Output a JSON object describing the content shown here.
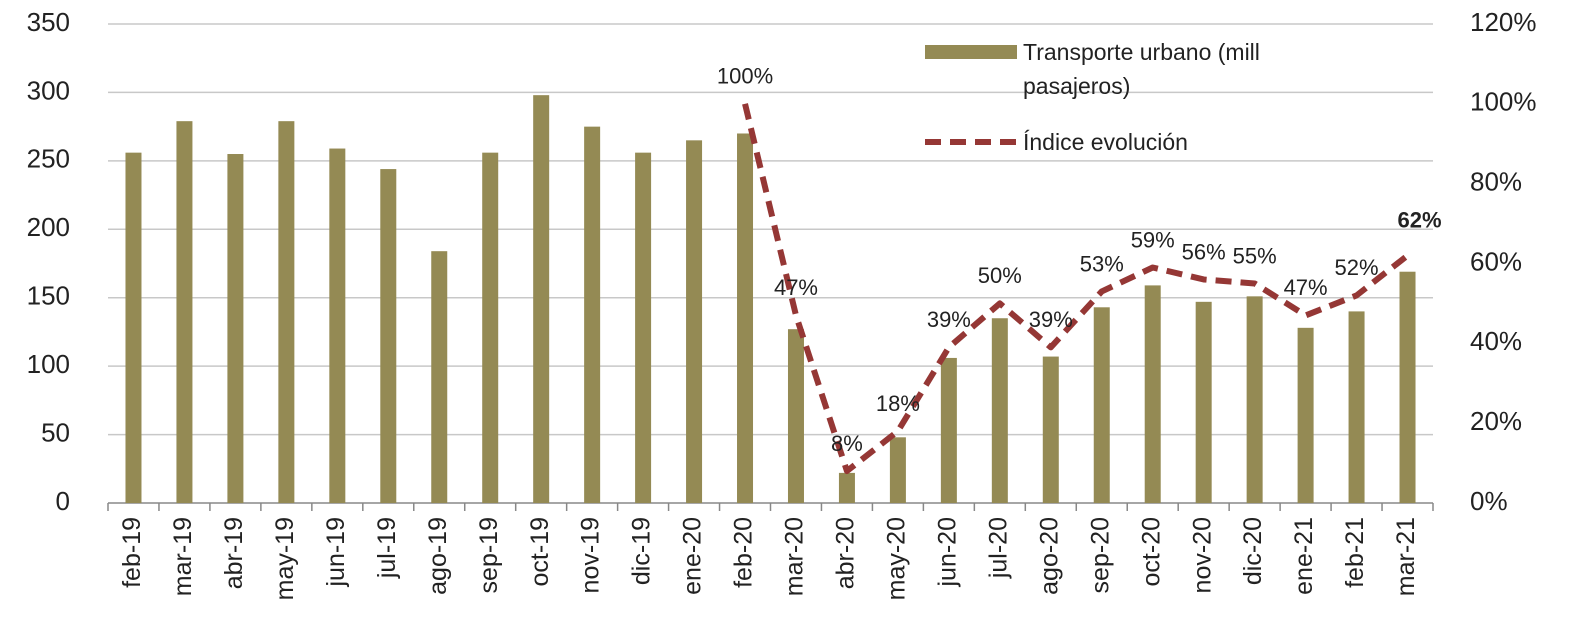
{
  "chart_data": {
    "type": "bar-line",
    "categories": [
      "feb-19",
      "mar-19",
      "abr-19",
      "may-19",
      "jun-19",
      "jul-19",
      "ago-19",
      "sep-19",
      "oct-19",
      "nov-19",
      "dic-19",
      "ene-20",
      "feb-20",
      "mar-20",
      "abr-20",
      "may-20",
      "jun-20",
      "jul-20",
      "ago-20",
      "sep-20",
      "oct-20",
      "nov-20",
      "dic-20",
      "ene-21",
      "feb-21",
      "mar-21"
    ],
    "series": [
      {
        "name": "Transporte urbano (mill pasajeros)",
        "type": "bar",
        "color": "#948a54",
        "values": [
          256,
          279,
          255,
          279,
          259,
          244,
          184,
          256,
          298,
          275,
          256,
          265,
          270,
          127,
          22,
          48,
          106,
          135,
          107,
          143,
          159,
          147,
          151,
          128,
          140,
          169
        ]
      },
      {
        "name": "Índice evolución",
        "type": "line",
        "axis": "y2",
        "color": "#953735",
        "dashed": true,
        "values": [
          null,
          null,
          null,
          null,
          null,
          null,
          null,
          null,
          null,
          null,
          null,
          null,
          100,
          47,
          8,
          18,
          39,
          50,
          39,
          53,
          59,
          56,
          55,
          47,
          52,
          62
        ],
        "value_labels": [
          null,
          null,
          null,
          null,
          null,
          null,
          null,
          null,
          null,
          null,
          null,
          null,
          "100%",
          "47%",
          "8%",
          "18%",
          "39%",
          "50%",
          "39%",
          "53%",
          "59%",
          "56%",
          "55%",
          "47%",
          "52%",
          "62%"
        ]
      }
    ],
    "ylim": [
      0,
      350
    ],
    "yticks": [
      0,
      50,
      100,
      150,
      200,
      250,
      300,
      350
    ],
    "y2lim": [
      0,
      120
    ],
    "y2ticks": [
      {
        "value": 0,
        "label": "0%"
      },
      {
        "value": 20,
        "label": "20%"
      },
      {
        "value": 40,
        "label": "40%"
      },
      {
        "value": 60,
        "label": "60%"
      },
      {
        "value": 80,
        "label": "80%"
      },
      {
        "value": 100,
        "label": "100%"
      },
      {
        "value": 120,
        "label": "120%"
      }
    ],
    "grid": true,
    "legend": "top-right"
  }
}
